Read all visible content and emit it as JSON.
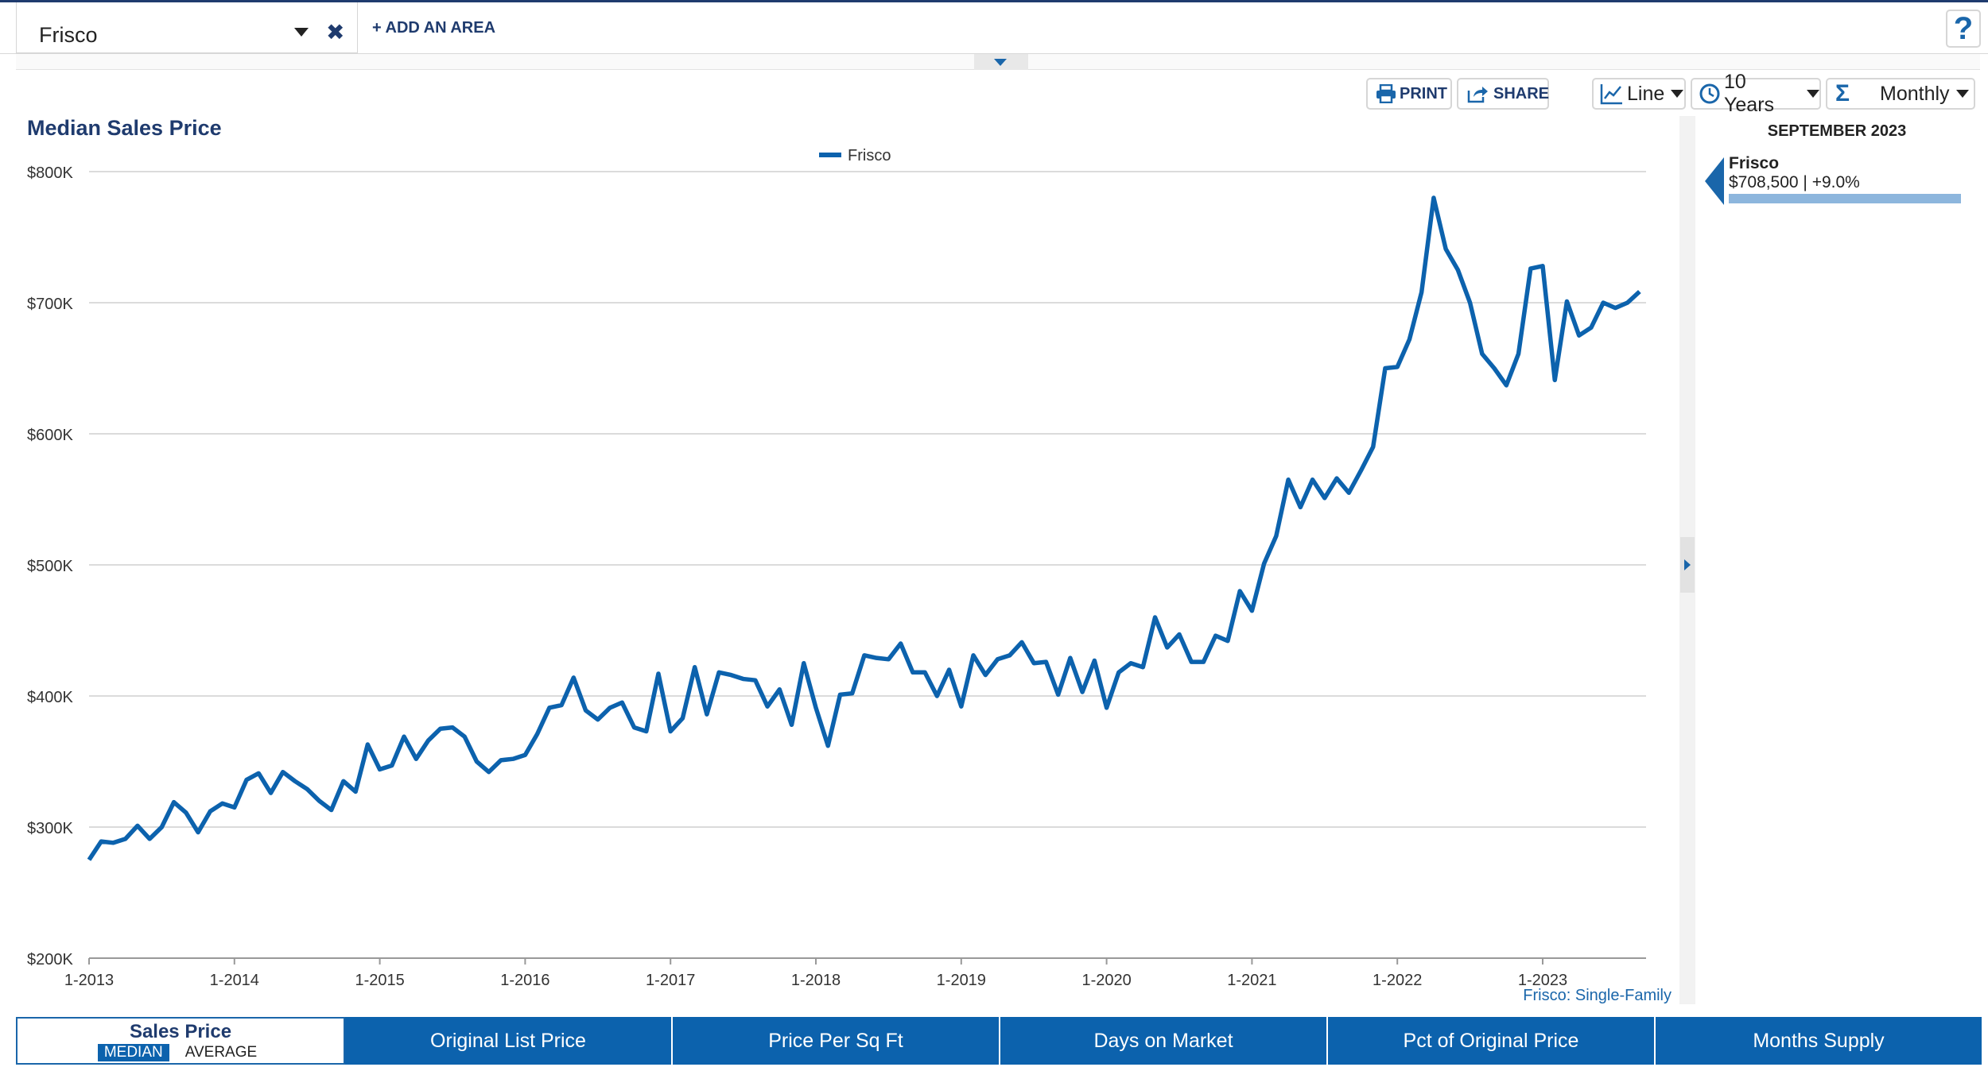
{
  "area_selector": {
    "value": "Frisco",
    "add_label": "+ ADD AN AREA"
  },
  "help_label": "?",
  "toolbar": {
    "print_label": "PRINT",
    "share_label": "SHARE",
    "chart_type": "Line",
    "range": "10 Years",
    "interval": "Monthly"
  },
  "side_panel": {
    "date": "SEPTEMBER 2023",
    "area": "Frisco",
    "value": "$708,500 | +9.0%",
    "bar_fraction": 1.0
  },
  "source_note": "Frisco: Single-Family",
  "metric_tabs": {
    "active_title": "Sales Price",
    "active_sub_median": "MEDIAN",
    "active_sub_average": "AVERAGE",
    "tabs": [
      "Original List Price",
      "Price Per Sq Ft",
      "Days on Market",
      "Pct of Original Price",
      "Months Supply"
    ]
  },
  "colors": {
    "series": "#0c62ad",
    "brand": "#1f3b6e",
    "grid": "#cfcfcf"
  },
  "chart_data": {
    "type": "line",
    "title": "Median Sales Price",
    "legend": [
      "Frisco"
    ],
    "legend_position": "top-center",
    "grid": true,
    "ylim": [
      200000,
      800000
    ],
    "y_ticks": [
      "$200K",
      "$300K",
      "$400K",
      "$500K",
      "$600K",
      "$700K",
      "$800K"
    ],
    "x_ticks": [
      "1-2013",
      "1-2014",
      "1-2015",
      "1-2016",
      "1-2017",
      "1-2018",
      "1-2019",
      "1-2020",
      "1-2021",
      "1-2022",
      "1-2023"
    ],
    "x_start": "1-2013",
    "series": [
      {
        "name": "Frisco",
        "values": [
          275000,
          289000,
          288000,
          291000,
          301000,
          291000,
          300000,
          319000,
          311000,
          296000,
          312000,
          318000,
          315000,
          336000,
          341000,
          326000,
          342000,
          335000,
          329000,
          320000,
          313000,
          335000,
          327000,
          363000,
          344000,
          347000,
          369000,
          352000,
          366000,
          375000,
          376000,
          369000,
          350000,
          342000,
          351000,
          352000,
          355000,
          371000,
          391000,
          393000,
          414000,
          389000,
          382000,
          391000,
          395000,
          376000,
          373000,
          417000,
          373000,
          383000,
          422000,
          386000,
          418000,
          416000,
          413000,
          412000,
          392000,
          405000,
          378000,
          425000,
          391000,
          362000,
          401000,
          402000,
          431000,
          429000,
          428000,
          440000,
          418000,
          418000,
          400000,
          420000,
          392000,
          431000,
          416000,
          428000,
          431000,
          441000,
          425000,
          426000,
          401000,
          429000,
          403000,
          427000,
          391000,
          418000,
          425000,
          422000,
          460000,
          437000,
          447000,
          426000,
          426000,
          446000,
          442000,
          480000,
          465000,
          501000,
          522000,
          565000,
          544000,
          565000,
          551000,
          566000,
          555000,
          572000,
          590000,
          650000,
          651000,
          672000,
          708000,
          780000,
          741000,
          725000,
          700000,
          661000,
          650000,
          637000,
          661000,
          726000,
          728000,
          641000,
          701000,
          675000,
          681000,
          700000,
          696000,
          700000,
          708500
        ]
      }
    ]
  }
}
